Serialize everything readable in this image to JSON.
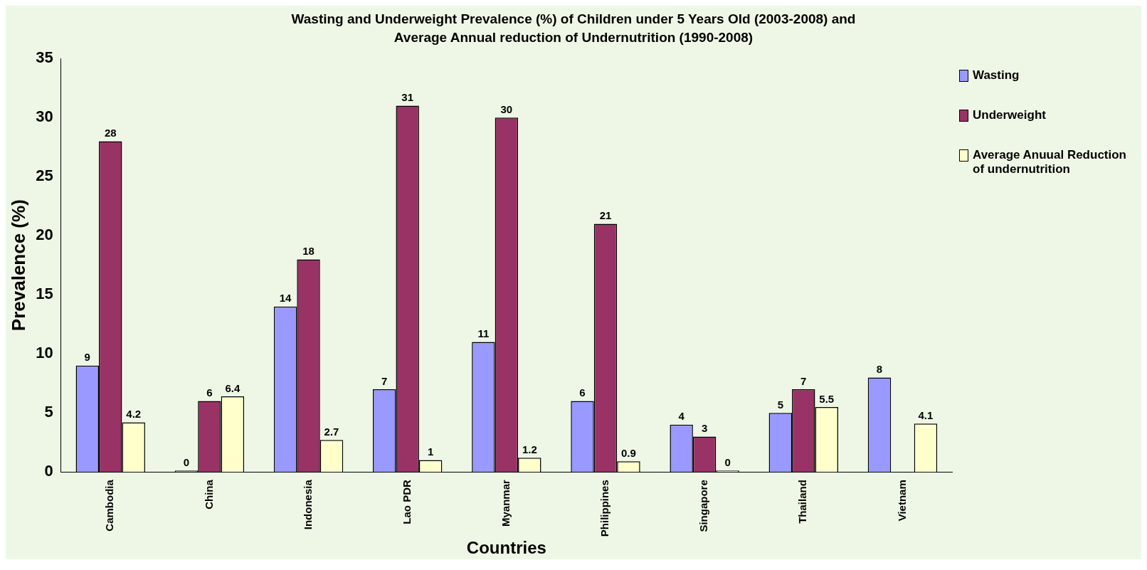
{
  "chart_data": {
    "type": "bar",
    "title": "Wasting and Underweight Prevalence (%)  of Children under 5 Years Old (2003-2008) and Average Annual reduction of Undernutrition (1990-2008)",
    "xlabel": "Countries",
    "ylabel": "Prevalence (%)",
    "categories": [
      "Cambodia",
      "China",
      "Indonesia",
      "Lao PDR",
      "Myanmar",
      "Philippines",
      "Singapore",
      "Thailand",
      "Vietnam"
    ],
    "series": [
      {
        "name": "Wasting",
        "color": "#9999ff",
        "values": [
          9,
          0,
          14,
          7,
          11,
          6,
          4,
          5,
          8
        ]
      },
      {
        "name": "Underweight",
        "color": "#993366",
        "values": [
          28,
          6,
          18,
          31,
          30,
          21,
          3,
          7,
          null
        ]
      },
      {
        "name": "Average Anuual Reduction of undernutrition",
        "color": "#ffffcc",
        "values": [
          4.2,
          6.4,
          2.7,
          1,
          1.2,
          0.9,
          0,
          5.5,
          4.1
        ]
      }
    ],
    "ylim": [
      0,
      35
    ],
    "yticks": [
      0,
      5,
      10,
      15,
      20,
      25,
      30,
      35
    ],
    "grid": false,
    "legend": "top right",
    "data_labels": true
  }
}
